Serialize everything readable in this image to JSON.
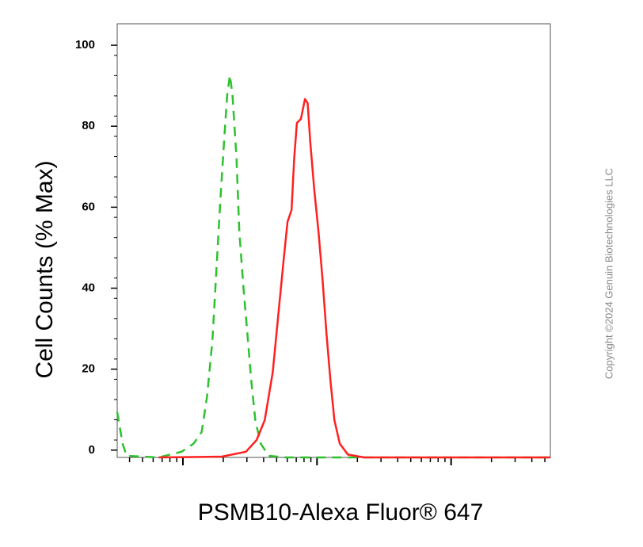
{
  "chart_data": {
    "type": "line",
    "y_label": "Cell Counts (% Max)",
    "x_label": "PSMB10-Alexa Fluor® 647",
    "copyright": "Copyright ©2024 Genuin Biotechnologies LLC",
    "xlim": [
      0.51,
      3.74
    ],
    "ylim": [
      -1.8,
      105.3
    ],
    "yticks": [
      0,
      20,
      40,
      60,
      80,
      100
    ],
    "log_x": true,
    "series": [
      {
        "color": "#2ec12e",
        "dashed": true,
        "x": [
          0.51,
          0.55,
          0.58,
          0.82,
          0.99,
          1.08,
          1.14,
          1.18,
          1.22,
          1.25,
          1.28,
          1.31,
          1.33,
          1.35,
          1.37,
          1.4,
          1.42,
          1.45,
          1.48,
          1.51,
          1.54,
          1.58,
          1.64,
          1.76,
          2.0,
          3.74
        ],
        "values": [
          9.4,
          1.6,
          -1.4,
          -1.8,
          -0.4,
          1.6,
          4.5,
          13.3,
          27.0,
          44.6,
          62.2,
          77.9,
          87.7,
          92.6,
          87.7,
          72.0,
          54.4,
          40.7,
          29.0,
          17.2,
          7.4,
          1.6,
          -1.4,
          -1.8,
          -1.8,
          -1.8
        ]
      },
      {
        "color": "#ff2020",
        "dashed": false,
        "x": [
          0.82,
          1.29,
          1.47,
          1.55,
          1.61,
          1.67,
          1.71,
          1.75,
          1.78,
          1.81,
          1.83,
          1.85,
          1.88,
          1.91,
          1.93,
          1.95,
          1.98,
          2.01,
          2.04,
          2.07,
          2.1,
          2.13,
          2.17,
          2.23,
          2.35,
          3.74
        ],
        "values": [
          -1.8,
          -1.6,
          -0.4,
          2.5,
          7.4,
          19.2,
          32.9,
          46.6,
          56.4,
          59.3,
          72.0,
          80.8,
          81.8,
          86.7,
          85.7,
          75.9,
          64.2,
          54.4,
          42.7,
          29.0,
          17.2,
          7.4,
          1.6,
          -1.1,
          -1.8,
          -1.8
        ]
      }
    ]
  }
}
